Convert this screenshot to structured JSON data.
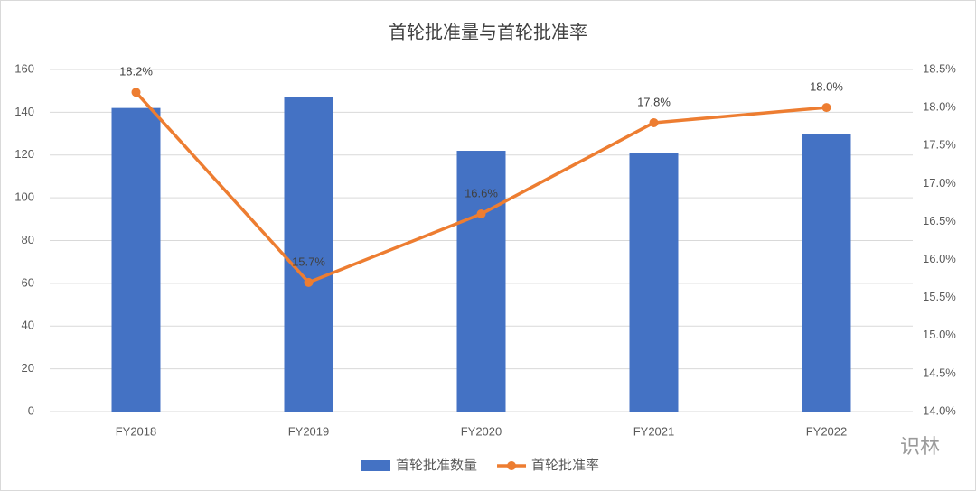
{
  "chart_data": {
    "type": "bar_line",
    "title": "首轮批准量与首轮批准率",
    "categories": [
      "FY2018",
      "FY2019",
      "FY2020",
      "FY2021",
      "FY2022"
    ],
    "series": [
      {
        "name": "首轮批准数量",
        "type": "bar",
        "color": "#4472c4",
        "values": [
          142,
          147,
          122,
          121,
          130
        ]
      },
      {
        "name": "首轮批准率",
        "type": "line",
        "axis": "y2",
        "color": "#ed7d31",
        "values": [
          18.2,
          15.7,
          16.6,
          17.8,
          18.0
        ],
        "value_labels": [
          "18.2%",
          "15.7%",
          "16.6%",
          "17.8%",
          "18.0%"
        ]
      }
    ],
    "ylim": [
      0,
      160
    ],
    "yticks": [
      0,
      20,
      40,
      60,
      80,
      100,
      120,
      140,
      160
    ],
    "y2lim": [
      14.0,
      18.5
    ],
    "y2ticks": [
      {
        "value": 14.0,
        "label": "14.0%"
      },
      {
        "value": 14.5,
        "label": "14.5%"
      },
      {
        "value": 15.0,
        "label": "15.0%"
      },
      {
        "value": 15.5,
        "label": "15.5%"
      },
      {
        "value": 16.0,
        "label": "16.0%"
      },
      {
        "value": 16.5,
        "label": "16.5%"
      },
      {
        "value": 17.0,
        "label": "17.0%"
      },
      {
        "value": 17.5,
        "label": "17.5%"
      },
      {
        "value": 18.0,
        "label": "18.0%"
      },
      {
        "value": 18.5,
        "label": "18.5%"
      }
    ],
    "grid": true,
    "legend": "bottom",
    "watermark": "识林"
  }
}
